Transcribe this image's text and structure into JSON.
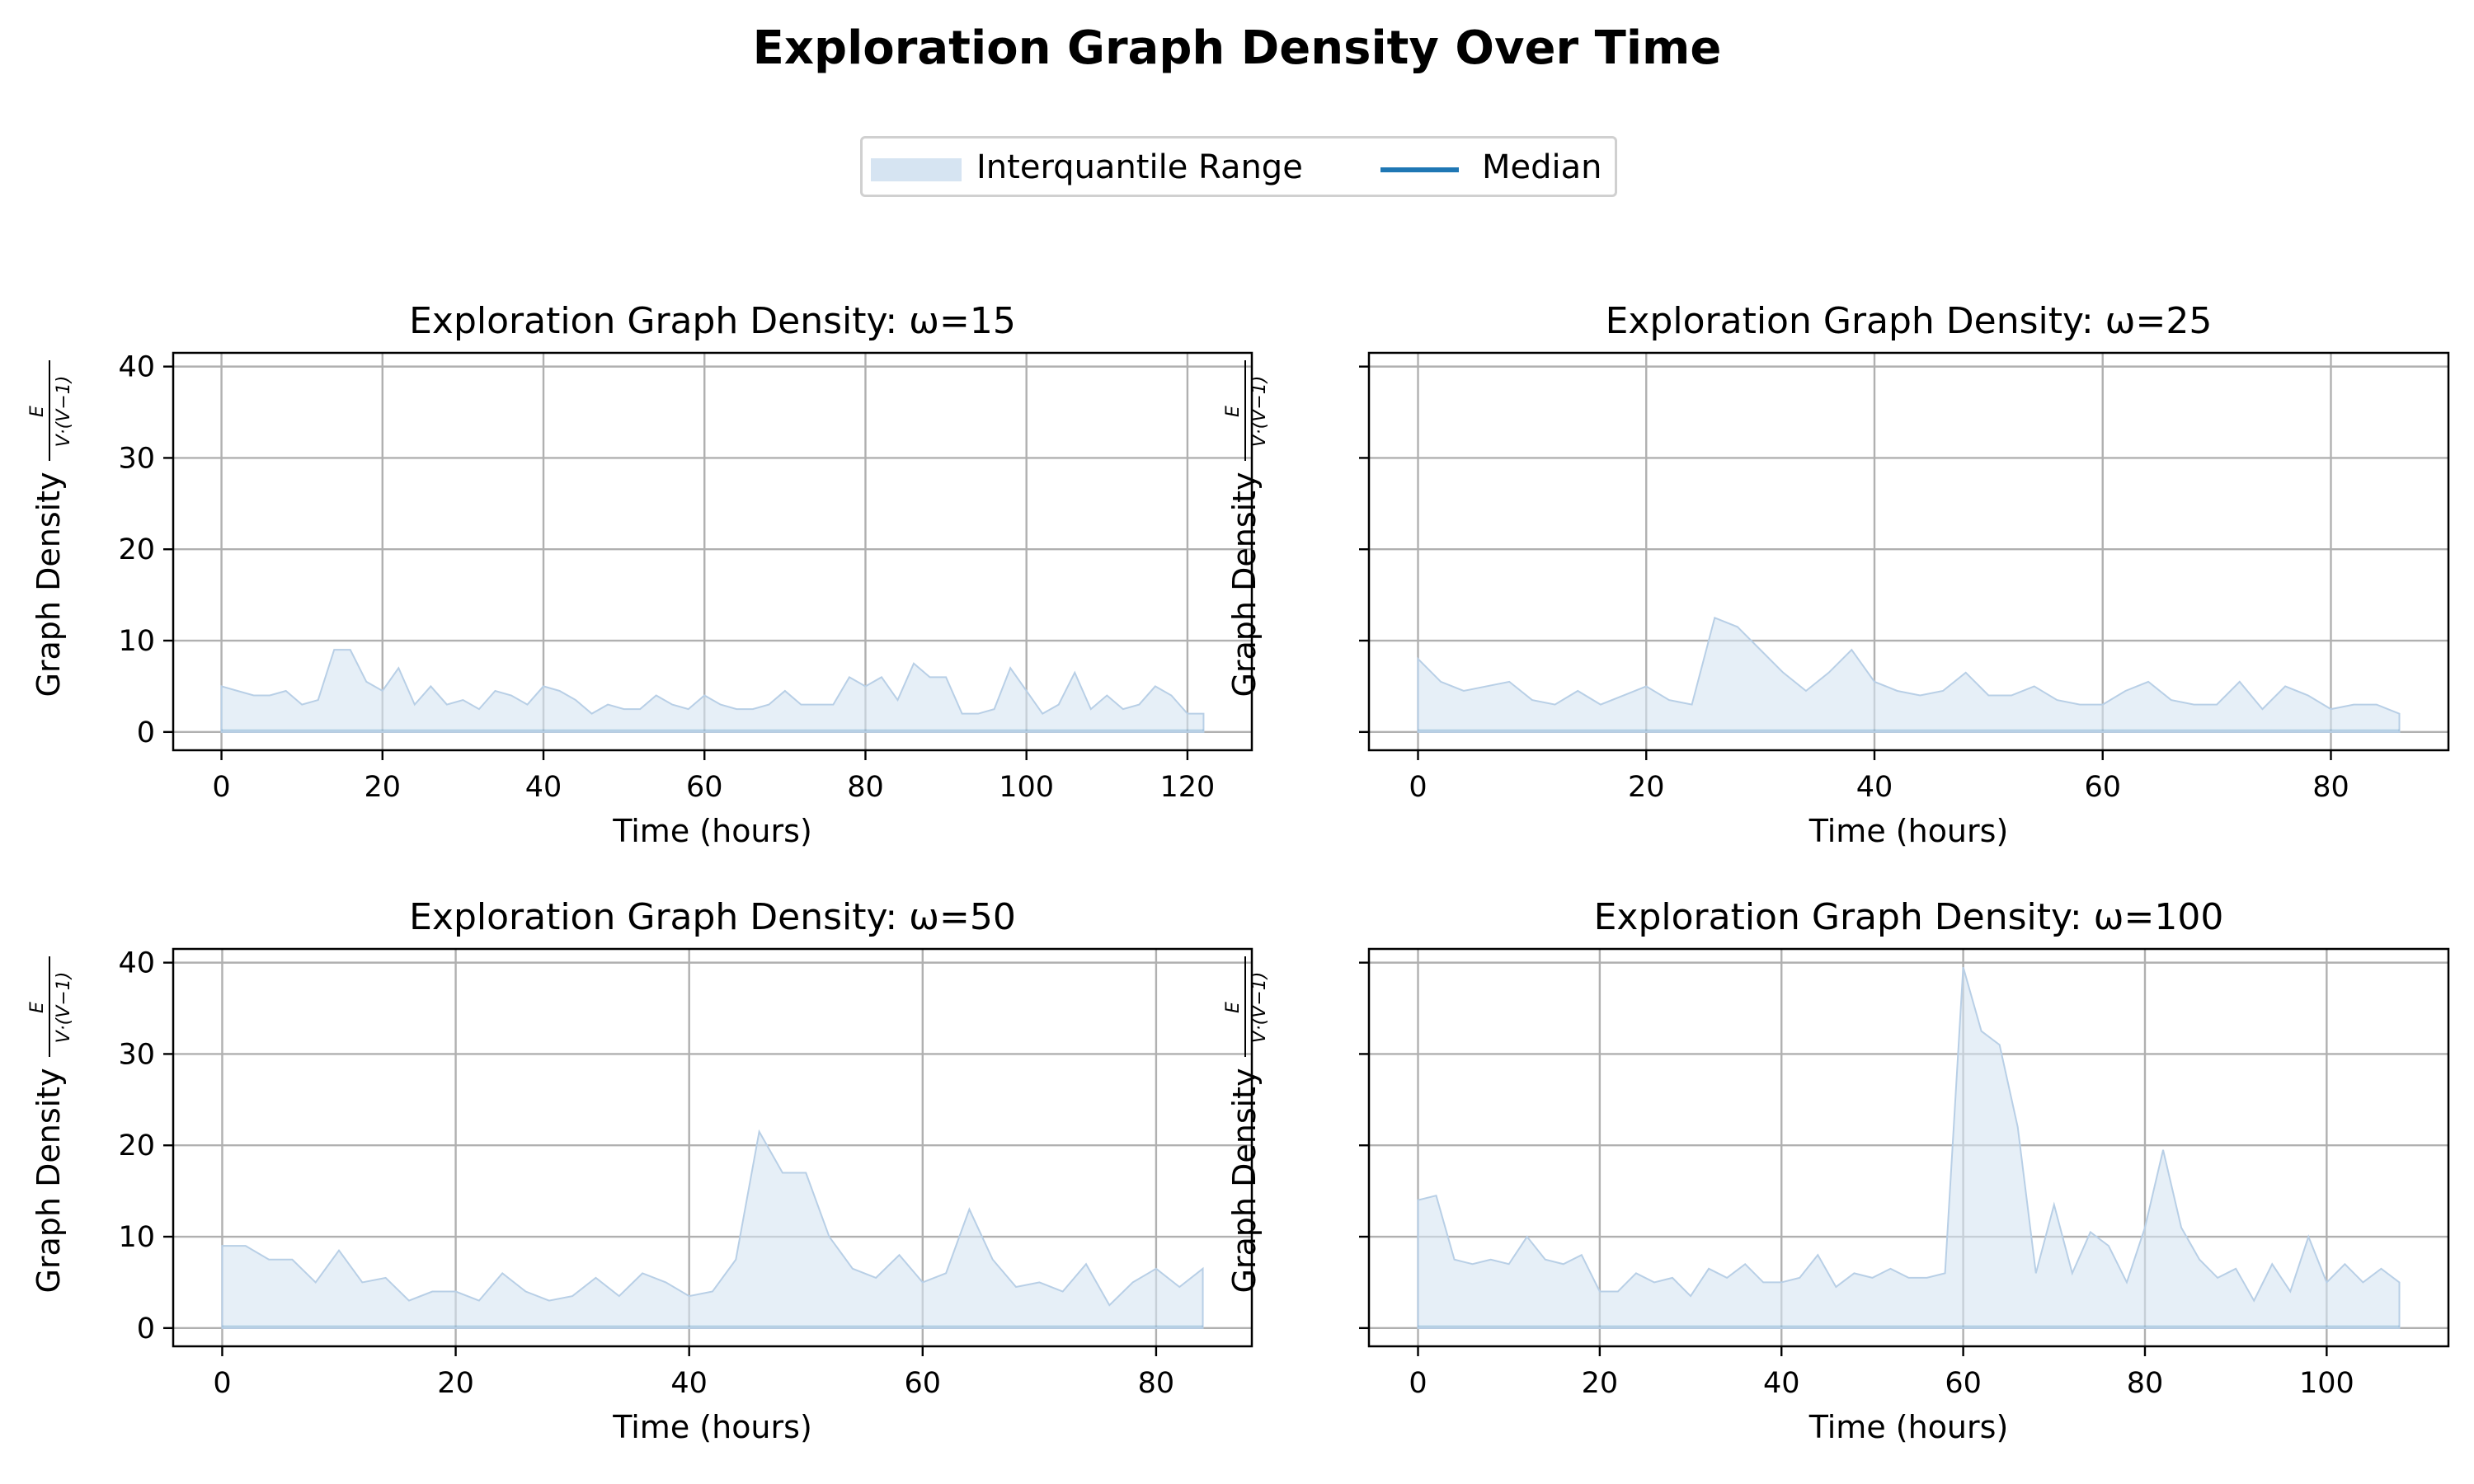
{
  "figure_title": "Exploration Graph Density Over Time",
  "legend": [
    {
      "label": "Interquantile Range",
      "kind": "band",
      "color": "#c6dbef"
    },
    {
      "label": "Median",
      "kind": "line",
      "color": "#1f77b4"
    }
  ],
  "colors": {
    "band_fill": "#d6e4f2",
    "band_edge": "#b8cfe6",
    "median": "#1f77b4",
    "grid": "#b0b0b0"
  },
  "chart_data": [
    {
      "type": "area",
      "title": "Exploration Graph Density: ω=15",
      "xlabel": "Time (hours)",
      "ylabel": "Graph Density",
      "ylabel_formula": {
        "numerator": "E",
        "denominator": "V·(V−1)"
      },
      "xlim": [
        -6,
        128
      ],
      "ylim": [
        -2,
        41.5
      ],
      "xticks": [
        0,
        20,
        40,
        60,
        80,
        100,
        120
      ],
      "yticks": [
        0,
        10,
        20,
        30,
        40
      ],
      "grid": true,
      "x": [
        0,
        2,
        4,
        6,
        8,
        10,
        12,
        14,
        16,
        18,
        20,
        22,
        24,
        26,
        28,
        30,
        32,
        34,
        36,
        38,
        40,
        42,
        44,
        46,
        48,
        50,
        52,
        54,
        56,
        58,
        60,
        62,
        64,
        66,
        68,
        70,
        72,
        74,
        76,
        78,
        80,
        82,
        84,
        86,
        88,
        90,
        92,
        94,
        96,
        98,
        100,
        102,
        104,
        106,
        108,
        110,
        112,
        114,
        116,
        118,
        120,
        122
      ],
      "series": [
        {
          "name": "Interquantile Range",
          "low_constant": 0,
          "high": [
            5,
            4.5,
            4,
            4,
            4.5,
            3,
            3.5,
            9,
            9,
            5.5,
            4.5,
            7,
            3,
            5,
            3,
            3.5,
            2.5,
            4.5,
            4,
            3,
            5,
            4.5,
            3.5,
            2,
            3,
            2.5,
            2.5,
            4,
            3,
            2.5,
            4,
            3,
            2.5,
            2.5,
            3,
            4.5,
            3,
            3,
            3,
            6,
            5,
            6,
            3.5,
            7.5,
            6,
            6,
            2,
            2,
            2.5,
            7,
            4.5,
            2,
            3,
            6.5,
            2.5,
            4,
            2.5,
            3,
            5,
            4,
            2,
            2
          ]
        },
        {
          "name": "Median",
          "constant": 0.2
        }
      ]
    },
    {
      "type": "area",
      "title": "Exploration Graph Density: ω=25",
      "xlabel": "Time (hours)",
      "ylabel": "Graph Density",
      "ylabel_formula": {
        "numerator": "E",
        "denominator": "V·(V−1)"
      },
      "xlim": [
        -4.3,
        90.3
      ],
      "ylim": [
        -2,
        41.5
      ],
      "xticks": [
        0,
        20,
        40,
        60,
        80
      ],
      "yticks": [
        0,
        10,
        20,
        30,
        40
      ],
      "grid": true,
      "x": [
        0,
        2,
        4,
        6,
        8,
        10,
        12,
        14,
        16,
        18,
        20,
        22,
        24,
        26,
        28,
        30,
        32,
        34,
        36,
        38,
        40,
        42,
        44,
        46,
        48,
        50,
        52,
        54,
        56,
        58,
        60,
        62,
        64,
        66,
        68,
        70,
        72,
        74,
        76,
        78,
        80,
        82,
        84,
        86
      ],
      "series": [
        {
          "name": "Interquantile Range",
          "low_constant": 0,
          "high": [
            8,
            5.5,
            4.5,
            5,
            5.5,
            3.5,
            3,
            4.5,
            3,
            4,
            5,
            3.5,
            3,
            12.5,
            11.5,
            9,
            6.5,
            4.5,
            6.5,
            9,
            5.5,
            4.5,
            4,
            4.5,
            6.5,
            4,
            4,
            5,
            3.5,
            3,
            3,
            4.5,
            5.5,
            3.5,
            3,
            3,
            5.5,
            2.5,
            5,
            4,
            2.5,
            3,
            3,
            2
          ]
        },
        {
          "name": "Median",
          "constant": 0.2
        }
      ]
    },
    {
      "type": "area",
      "title": "Exploration Graph Density: ω=50",
      "xlabel": "Time (hours)",
      "ylabel": "Graph Density",
      "ylabel_formula": {
        "numerator": "E",
        "denominator": "V·(V−1)"
      },
      "xlim": [
        -4.2,
        88.2
      ],
      "ylim": [
        -2,
        41.5
      ],
      "xticks": [
        0,
        20,
        40,
        60,
        80
      ],
      "yticks": [
        0,
        10,
        20,
        30,
        40
      ],
      "grid": true,
      "x": [
        0,
        2,
        4,
        6,
        8,
        10,
        12,
        14,
        16,
        18,
        20,
        22,
        24,
        26,
        28,
        30,
        32,
        34,
        36,
        38,
        40,
        42,
        44,
        46,
        48,
        50,
        52,
        54,
        56,
        58,
        60,
        62,
        64,
        66,
        68,
        70,
        72,
        74,
        76,
        78,
        80,
        82,
        84
      ],
      "series": [
        {
          "name": "Interquantile Range",
          "low_constant": 0,
          "high": [
            9,
            9,
            7.5,
            7.5,
            5,
            8.5,
            5,
            5.5,
            3,
            4,
            4,
            3,
            6,
            4,
            3,
            3.5,
            5.5,
            3.5,
            6,
            5,
            3.5,
            4,
            7.5,
            21.5,
            17,
            17,
            10,
            6.5,
            5.5,
            8,
            5,
            6,
            13,
            7.5,
            4.5,
            5,
            4,
            7,
            2.5,
            5,
            6.5,
            4.5,
            6.5
          ]
        },
        {
          "name": "Median",
          "constant": 0.2
        }
      ]
    },
    {
      "type": "area",
      "title": "Exploration Graph Density: ω=100",
      "xlabel": "Time (hours)",
      "ylabel": "Graph Density",
      "ylabel_formula": {
        "numerator": "E",
        "denominator": "V·(V−1)"
      },
      "xlim": [
        -5.4,
        113.4
      ],
      "ylim": [
        -2,
        41.5
      ],
      "xticks": [
        0,
        20,
        40,
        60,
        80,
        100
      ],
      "yticks": [
        0,
        10,
        20,
        30,
        40
      ],
      "grid": true,
      "x": [
        0,
        2,
        4,
        6,
        8,
        10,
        12,
        14,
        16,
        18,
        20,
        22,
        24,
        26,
        28,
        30,
        32,
        34,
        36,
        38,
        40,
        42,
        44,
        46,
        48,
        50,
        52,
        54,
        56,
        58,
        60,
        62,
        64,
        66,
        68,
        70,
        72,
        74,
        76,
        78,
        80,
        82,
        84,
        86,
        88,
        90,
        92,
        94,
        96,
        98,
        100,
        102,
        104,
        106,
        108
      ],
      "series": [
        {
          "name": "Interquantile Range",
          "low_constant": 0,
          "high": [
            14,
            14.5,
            7.5,
            7,
            7.5,
            7,
            10,
            7.5,
            7,
            8,
            4,
            4,
            6,
            5,
            5.5,
            3.5,
            6.5,
            5.5,
            7,
            5,
            5,
            5.5,
            8,
            4.5,
            6,
            5.5,
            6.5,
            5.5,
            5.5,
            6,
            39.5,
            32.5,
            31,
            22,
            6,
            13.5,
            6,
            10.5,
            9,
            5,
            11,
            19.5,
            11,
            7.5,
            5.5,
            6.5,
            3,
            7,
            4,
            10,
            5,
            7,
            5,
            6.5,
            5
          ]
        },
        {
          "name": "Median",
          "constant": 0.2
        }
      ]
    }
  ]
}
